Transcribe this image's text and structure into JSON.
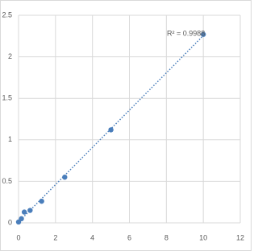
{
  "chart_data": {
    "type": "scatter",
    "x": [
      0,
      0.156,
      0.312,
      0.625,
      1.25,
      2.5,
      5,
      10
    ],
    "values": [
      0.01,
      0.05,
      0.13,
      0.15,
      0.26,
      0.55,
      1.12,
      2.27
    ],
    "color": "#4a7ebb",
    "xlim": [
      0,
      12
    ],
    "xticks": [
      0,
      2,
      4,
      6,
      8,
      10,
      12
    ],
    "ylim": [
      0,
      2.5
    ],
    "yticks": [
      0,
      0.5,
      1,
      1.5,
      2,
      2.5
    ],
    "grid": true,
    "trendline": "linear",
    "annotation": "R² = 0.9988"
  }
}
